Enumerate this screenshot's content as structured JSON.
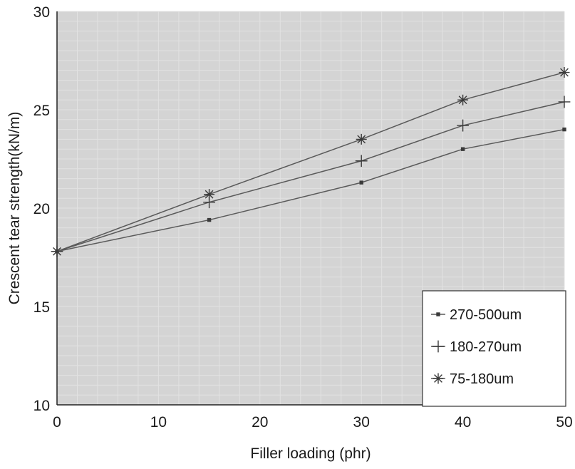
{
  "chart_data": {
    "type": "line",
    "title": "",
    "xlabel": "Filler loading (phr)",
    "ylabel": "Crescent tear strength(kN/m)",
    "xlim": [
      0,
      50
    ],
    "ylim": [
      10,
      30
    ],
    "xticks": [
      0,
      10,
      20,
      30,
      40,
      50
    ],
    "yticks": [
      10,
      15,
      20,
      25,
      30
    ],
    "grid": true,
    "legend_position": "bottom-right",
    "series": [
      {
        "name": "270-500um",
        "marker": "square",
        "x": [
          0,
          15,
          30,
          40,
          50
        ],
        "y": [
          17.8,
          19.4,
          21.3,
          23.0,
          24.0
        ]
      },
      {
        "name": "180-270um",
        "marker": "plus",
        "x": [
          0,
          15,
          30,
          40,
          50
        ],
        "y": [
          17.8,
          20.3,
          22.4,
          24.2,
          25.4
        ]
      },
      {
        "name": "75-180um",
        "marker": "star",
        "x": [
          0,
          15,
          30,
          40,
          50
        ],
        "y": [
          17.8,
          20.7,
          23.5,
          25.5,
          26.9
        ]
      }
    ]
  },
  "colors": {
    "plot_background": "#d4d4d4",
    "grid": "#e2e2e2",
    "line": "#5a5a5a",
    "marker": "#3a3a3a"
  }
}
